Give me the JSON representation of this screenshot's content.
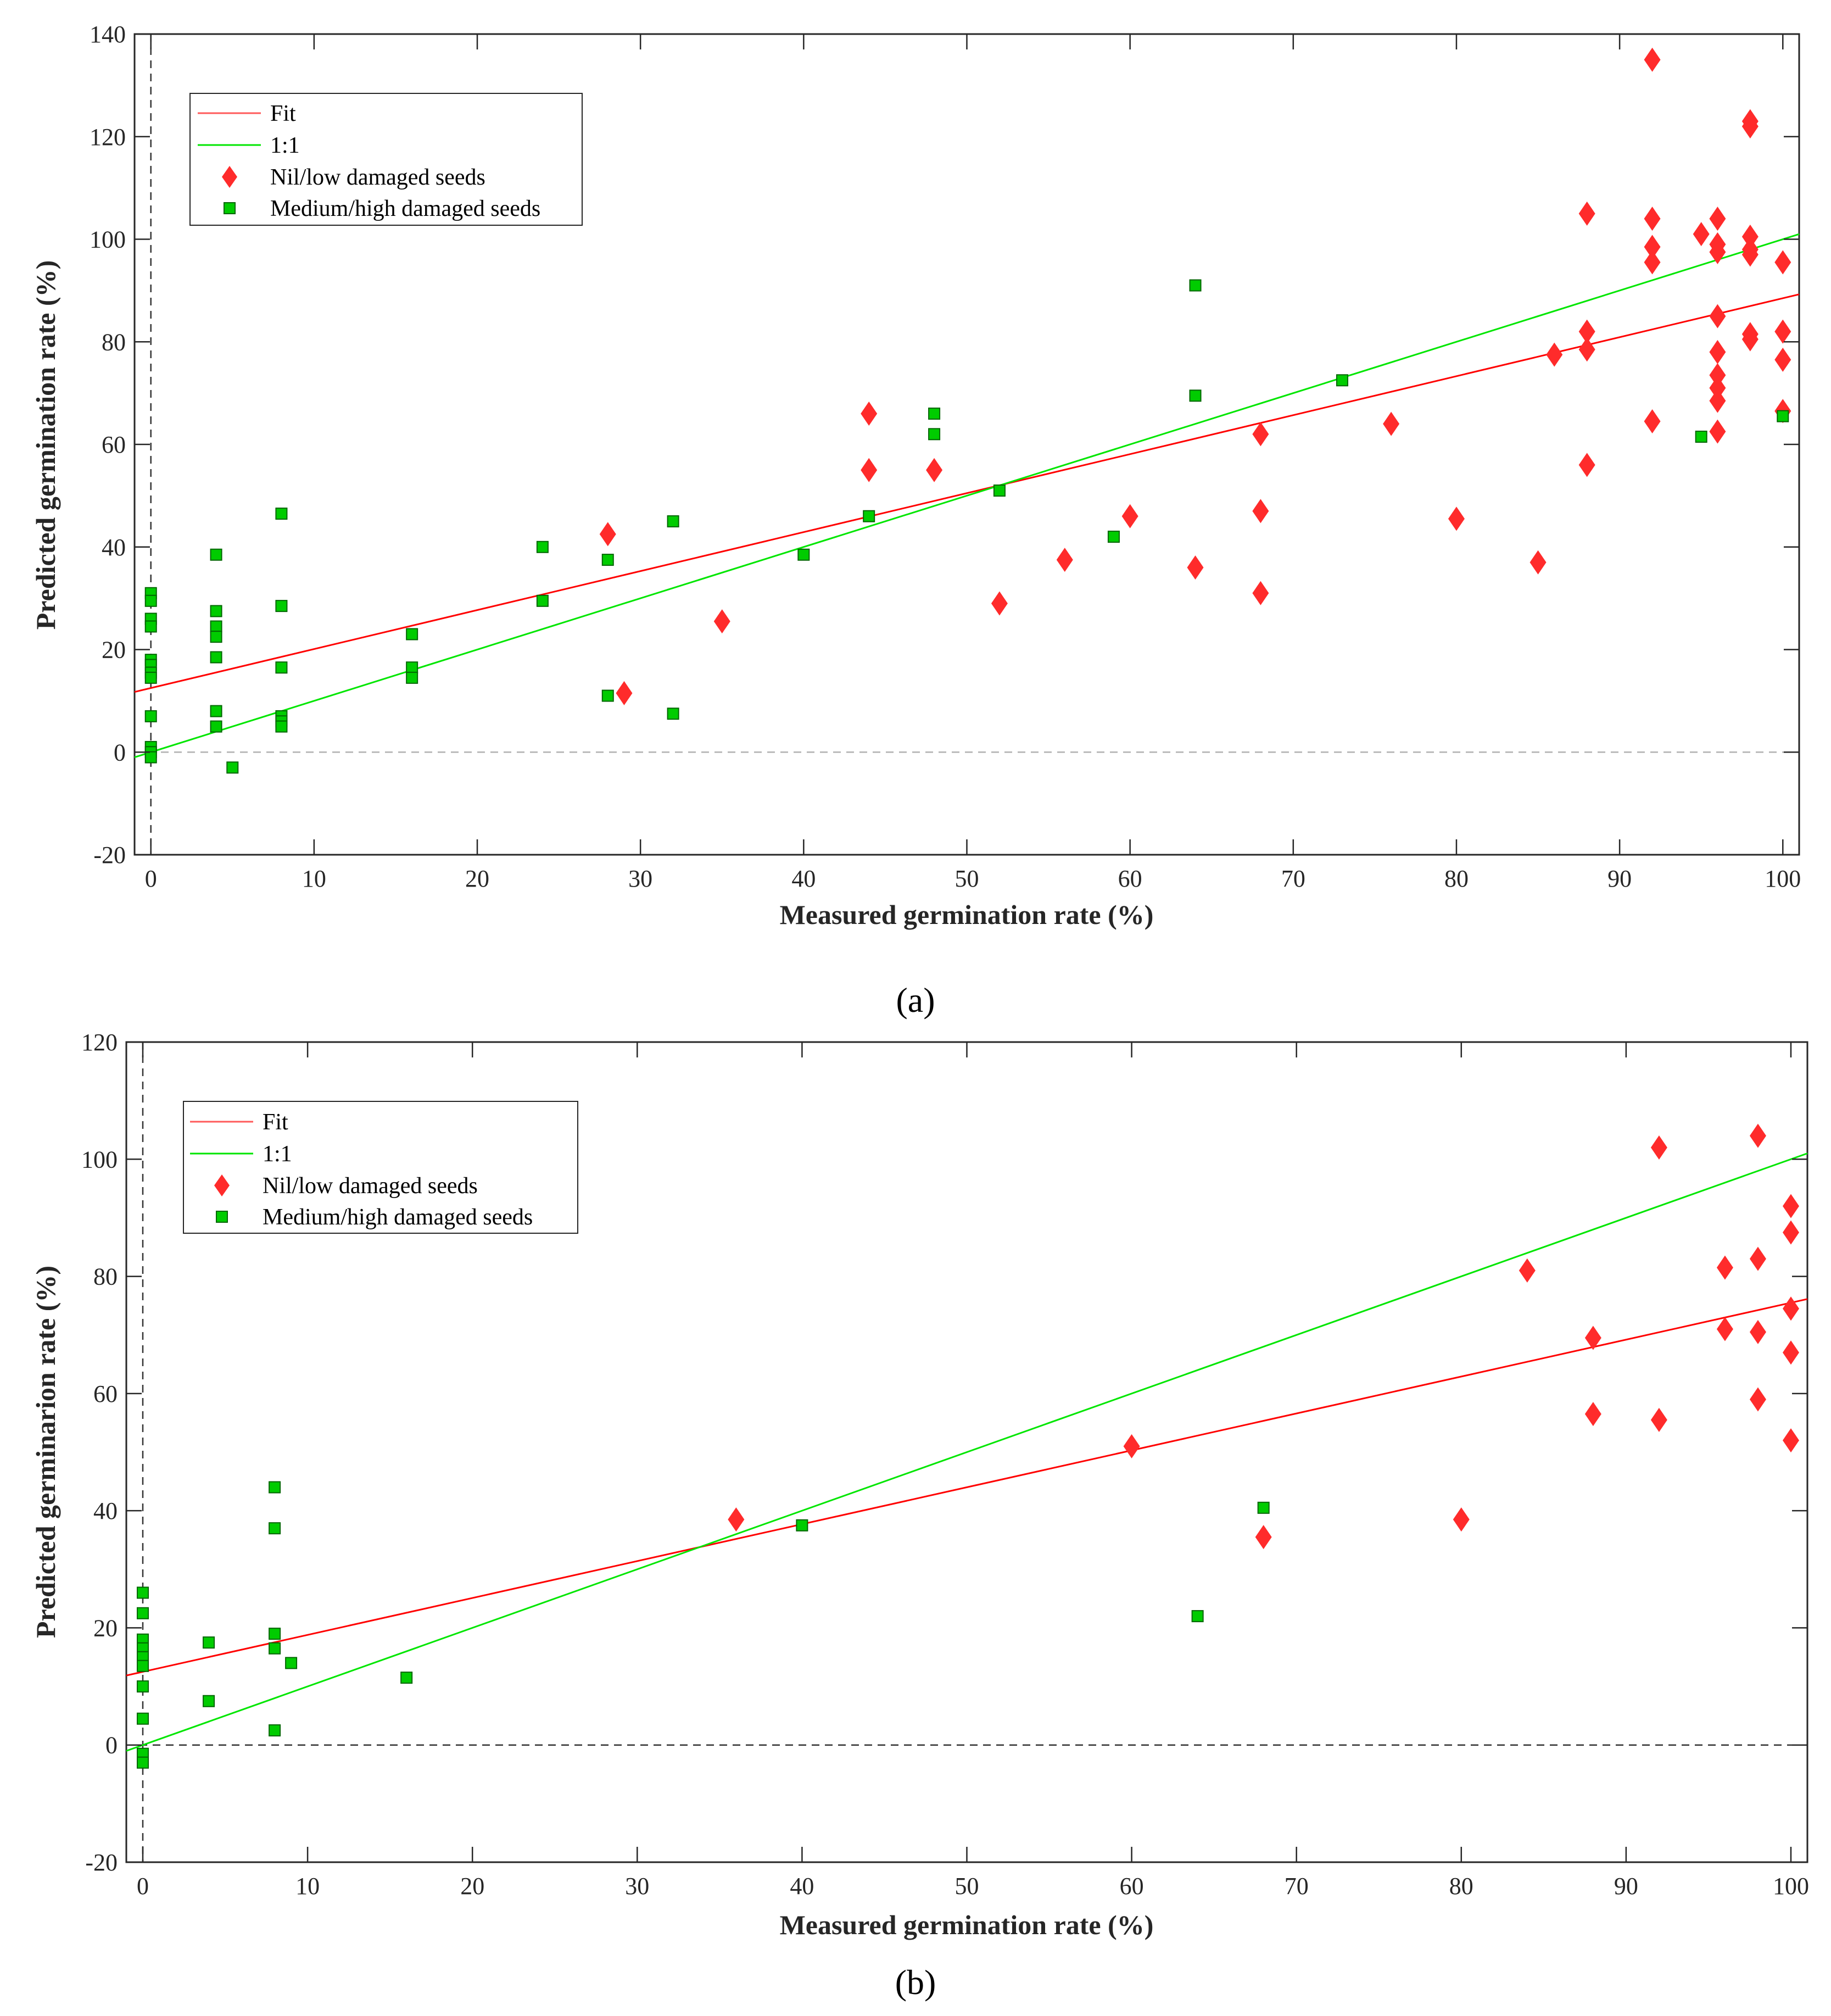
{
  "colors": {
    "fit": "#ff0000",
    "one_to_one": "#00e600",
    "nil_low": "#ff2b2b",
    "med_high": "#00cc00",
    "axis": "#262626",
    "zero_line": "#b0b0b0"
  },
  "chart_data": [
    {
      "panel_label": "(a)",
      "type": "scatter",
      "xlabel": "Measured germination rate (%)",
      "ylabel": "Predicted germination rate (%)",
      "xlim": [
        -1,
        101
      ],
      "ylim": [
        -20,
        140
      ],
      "xticks": [
        0,
        10,
        20,
        30,
        40,
        50,
        60,
        70,
        80,
        90,
        100
      ],
      "yticks": [
        -20,
        0,
        20,
        40,
        60,
        80,
        100,
        120,
        140
      ],
      "legend_placement": "top-left",
      "legend": [
        "Fit",
        "1:1",
        "Nil/low damaged seeds",
        "Medium/high damaged seeds"
      ],
      "fit": {
        "intercept": 12.5,
        "slope": 0.76
      },
      "one_to_one": {
        "intercept": 0,
        "slope": 1
      },
      "series": [
        {
          "name": "Nil/low damaged seeds",
          "marker": "diamond",
          "points": [
            [
              28,
              42.5
            ],
            [
              29,
              11.5
            ],
            [
              35,
              25.5
            ],
            [
              44,
              66
            ],
            [
              44,
              55
            ],
            [
              48,
              55
            ],
            [
              52,
              29
            ],
            [
              56,
              37.5
            ],
            [
              60,
              46
            ],
            [
              64,
              36
            ],
            [
              68,
              62
            ],
            [
              68,
              47
            ],
            [
              68,
              31
            ],
            [
              76,
              64
            ],
            [
              80,
              45.5
            ],
            [
              85,
              37
            ],
            [
              86,
              77.5
            ],
            [
              88,
              105
            ],
            [
              88,
              82
            ],
            [
              88,
              78.5
            ],
            [
              88,
              56
            ],
            [
              92,
              135
            ],
            [
              92,
              104
            ],
            [
              92,
              98.5
            ],
            [
              92,
              95.5
            ],
            [
              92,
              64.5
            ],
            [
              95,
              101
            ],
            [
              96,
              104
            ],
            [
              96,
              99
            ],
            [
              96,
              97.5
            ],
            [
              96,
              85
            ],
            [
              96,
              78
            ],
            [
              96,
              73.5
            ],
            [
              96,
              71
            ],
            [
              96,
              68.5
            ],
            [
              96,
              62.5
            ],
            [
              98,
              123
            ],
            [
              98,
              122
            ],
            [
              98,
              100.5
            ],
            [
              98,
              98
            ],
            [
              98,
              97
            ],
            [
              98,
              81.5
            ],
            [
              98,
              80.5
            ],
            [
              100,
              95.5
            ],
            [
              100,
              82
            ],
            [
              100,
              76.5
            ],
            [
              100,
              66.5
            ]
          ]
        },
        {
          "name": "Medium/high damaged seeds",
          "marker": "square",
          "points": [
            [
              0,
              31
            ],
            [
              0,
              29.5
            ],
            [
              0,
              26
            ],
            [
              0,
              24.5
            ],
            [
              0,
              18
            ],
            [
              0,
              17
            ],
            [
              0,
              15.5
            ],
            [
              0,
              14.5
            ],
            [
              0,
              7
            ],
            [
              0,
              1
            ],
            [
              0,
              0
            ],
            [
              0,
              -1
            ],
            [
              4,
              38.5
            ],
            [
              4,
              27.5
            ],
            [
              4,
              24.5
            ],
            [
              4,
              22.5
            ],
            [
              4,
              18.5
            ],
            [
              4,
              8
            ],
            [
              4,
              5
            ],
            [
              5,
              -3
            ],
            [
              8,
              46.5
            ],
            [
              8,
              28.5
            ],
            [
              8,
              16.5
            ],
            [
              8,
              7
            ],
            [
              8,
              6
            ],
            [
              8,
              5
            ],
            [
              16,
              23
            ],
            [
              16,
              16.5
            ],
            [
              16,
              14.5
            ],
            [
              24,
              40
            ],
            [
              24,
              29.5
            ],
            [
              28,
              37.5
            ],
            [
              28,
              11
            ],
            [
              32,
              45
            ],
            [
              32,
              7.5
            ],
            [
              40,
              38.5
            ],
            [
              44,
              46
            ],
            [
              48,
              66
            ],
            [
              48,
              62
            ],
            [
              52,
              51
            ],
            [
              59,
              42
            ],
            [
              64,
              91
            ],
            [
              64,
              69.5
            ],
            [
              73,
              72.5
            ],
            [
              95,
              61.5
            ],
            [
              100,
              65.5
            ]
          ]
        }
      ]
    },
    {
      "panel_label": "(b)",
      "type": "scatter",
      "xlabel": "Measured germination rate (%)",
      "ylabel": "Predicted germinarion rate (%)",
      "xlim": [
        -1,
        101
      ],
      "ylim": [
        -20,
        120
      ],
      "xticks": [
        0,
        10,
        20,
        30,
        40,
        50,
        60,
        70,
        80,
        90,
        100
      ],
      "yticks": [
        -20,
        0,
        20,
        40,
        60,
        80,
        100,
        120
      ],
      "legend_placement": "top-left",
      "legend": [
        "Fit",
        "1:1",
        "Nil/low damaged seeds",
        "Medium/high damaged seeds"
      ],
      "fit": {
        "intercept": 12.5,
        "slope": 0.63
      },
      "one_to_one": {
        "intercept": 0,
        "slope": 1
      },
      "series": [
        {
          "name": "Nil/low damaged seeds",
          "marker": "diamond",
          "points": [
            [
              36,
              38.5
            ],
            [
              60,
              51
            ],
            [
              68,
              35.5
            ],
            [
              80,
              38.5
            ],
            [
              84,
              81
            ],
            [
              88,
              69.5
            ],
            [
              88,
              56.5
            ],
            [
              92,
              102
            ],
            [
              92,
              55.5
            ],
            [
              96,
              81.5
            ],
            [
              96,
              71
            ],
            [
              98,
              104
            ],
            [
              98,
              83
            ],
            [
              98,
              70.5
            ],
            [
              98,
              59
            ],
            [
              100,
              92
            ],
            [
              100,
              87.5
            ],
            [
              100,
              74.5
            ],
            [
              100,
              67
            ],
            [
              100,
              52
            ]
          ]
        },
        {
          "name": "Medium/high damaged seeds",
          "marker": "square",
          "points": [
            [
              0,
              26
            ],
            [
              0,
              22.5
            ],
            [
              0,
              18
            ],
            [
              0,
              16.5
            ],
            [
              0,
              15
            ],
            [
              0,
              13.5
            ],
            [
              0,
              10
            ],
            [
              0,
              4.5
            ],
            [
              0,
              -1.5
            ],
            [
              0,
              -3
            ],
            [
              4,
              17.5
            ],
            [
              4,
              7.5
            ],
            [
              8,
              44
            ],
            [
              8,
              37
            ],
            [
              8,
              19
            ],
            [
              8,
              16.5
            ],
            [
              8,
              2.5
            ],
            [
              9,
              14
            ],
            [
              16,
              11.5
            ],
            [
              40,
              37.5
            ],
            [
              64,
              22
            ],
            [
              68,
              40.5
            ]
          ]
        }
      ]
    }
  ]
}
